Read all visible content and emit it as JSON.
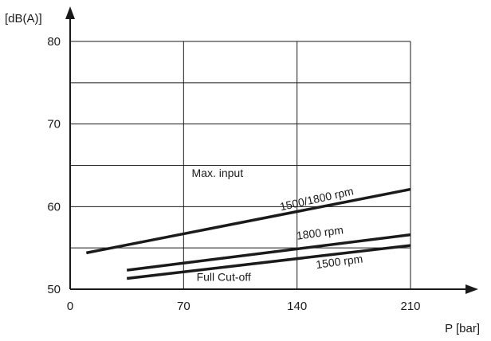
{
  "chart_data": {
    "type": "line",
    "title": "",
    "xlabel": "P [bar]",
    "ylabel": "[dB(A)]",
    "xlim": [
      0,
      240
    ],
    "ylim": [
      50,
      80
    ],
    "xticks": [
      0,
      70,
      140,
      210
    ],
    "yticks": [
      50,
      60,
      70,
      80
    ],
    "grid": true,
    "series": [
      {
        "x": [
          10,
          210
        ],
        "y": [
          54.4,
          62.1
        ]
      },
      {
        "x": [
          35,
          210
        ],
        "y": [
          52.3,
          56.6
        ]
      },
      {
        "x": [
          35,
          210
        ],
        "y": [
          51.3,
          55.3
        ]
      }
    ],
    "annotations": [
      {
        "text": "Max. input",
        "x": 75,
        "y": 63.6
      },
      {
        "text": "1500/1800 rpm",
        "x": 130,
        "y": 59.5
      },
      {
        "text": "1800 rpm",
        "x": 140,
        "y": 56.0
      },
      {
        "text": "1500 rpm",
        "x": 152,
        "y": 52.5
      },
      {
        "text": "Full Cut-off",
        "x": 78,
        "y": 51.0
      }
    ]
  }
}
